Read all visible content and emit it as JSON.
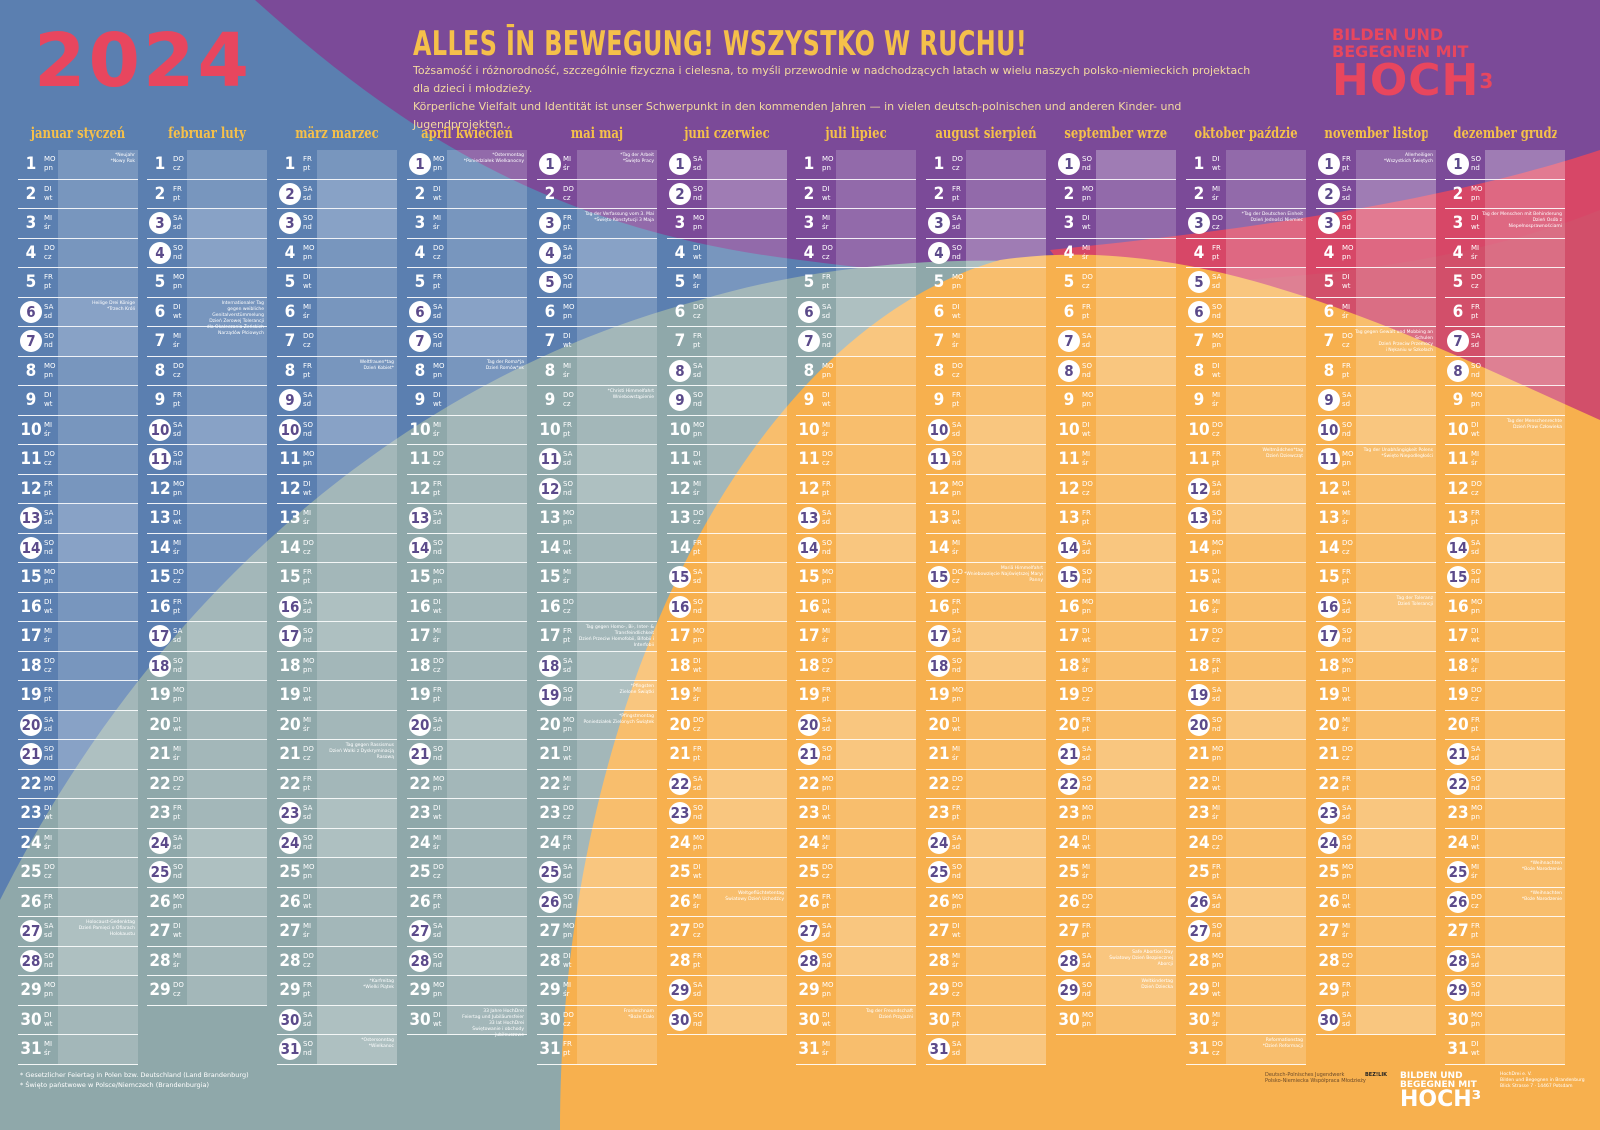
{
  "header": {
    "year": "2024",
    "headline": "ALLES ĪN BEWEGUNG! WSZYSTKO W RUCHU!",
    "intro_pl": "Tożsamość i różnorodność, szczególnie fizyczna i cielesna, to myśli przewodnie w nadchodzących latach w wielu naszych polsko-niemieckich projektach dla dzieci i młodzieży.",
    "intro_de": "Körperliche Vielfalt und Identität ist unser Schwerpunkt in den kommenden Jahren — in vielen deutsch-polnischen und anderen Kinder- und Jugendprojekten.",
    "logo_line1": "BILDEN UND",
    "logo_line2": "BEGEGNEN MIT",
    "logo_line3": "HOCH",
    "logo_sup": "3"
  },
  "weekdays": [
    [
      "MO",
      "pn"
    ],
    [
      "DI",
      "wt"
    ],
    [
      "MI",
      "śr"
    ],
    [
      "DO",
      "cz"
    ],
    [
      "FR",
      "pt"
    ],
    [
      "SA",
      "sd"
    ],
    [
      "SO",
      "nd"
    ]
  ],
  "months": [
    {
      "title": "januar styczeń",
      "days": 31,
      "start": 0,
      "holidays": [
        6,
        7,
        13,
        14,
        20,
        21,
        27,
        28
      ],
      "notes": {
        "1": "*Neujahr\n*Nowy Rok",
        "6": "Heilige Drei Könige\n*Trzech Króli",
        "27": "Holocaust-Gedenktag\nDzień Pamięci o Ofiarach Holokaustu"
      }
    },
    {
      "title": "februar luty",
      "days": 29,
      "start": 3,
      "holidays": [
        3,
        4,
        10,
        11,
        17,
        18,
        24,
        25
      ],
      "notes": {
        "6": "Internationaler Tag\ngegen weibliche Genitalverstümmelung\nDzień Zerowej Tolerancji\ndla Okaleczania Żeńskich Narządów Płciowych"
      }
    },
    {
      "title": "märz marzec",
      "days": 31,
      "start": 4,
      "holidays": [
        2,
        3,
        9,
        10,
        16,
        17,
        23,
        24,
        30,
        31
      ],
      "notes": {
        "8": "Weltfrauen*tag\nDzień Kobiet*",
        "21": "Tag gegen Rassismus\nDzień Walki z Dyskryminacją Rasową",
        "29": "*Karfreitag\n*Wielki Piątek",
        "31": "*Ostersonntag\n*Wielkanoc"
      }
    },
    {
      "title": "april kwiecień",
      "days": 30,
      "start": 0,
      "holidays": [
        1,
        6,
        7,
        13,
        14,
        20,
        21,
        27,
        28
      ],
      "notes": {
        "1": "*Ostermontag\n*Poniedziałek Wielkanocny",
        "8": "Tag der Roma*ja\nDzień Romów*ek",
        "30": "33 Jahre HochDrei\nFeiertag und Jubiläumsfeier\n33 lat HochDrei\nŚwiętowanie i obchody jubileuszowe"
      }
    },
    {
      "title": "mai maj",
      "days": 31,
      "start": 2,
      "holidays": [
        1,
        3,
        4,
        5,
        11,
        12,
        18,
        19,
        25,
        26
      ],
      "notes": {
        "1": "*Tag der Arbeit\n*Święto Pracy",
        "3": "Tag der Verfassung vom 3. Mai\n*Święto Konstytucji 3 Maja",
        "9": "*Christi Himmelfahrt\nWniebowstąpienie",
        "17": "Tag gegen Homo-, Bi-, Inter- & Transfeindlichkeit\nDzień Przeciw Homofobii, Bifobii i Interfobii",
        "19": "*Pfingsten\nZielone Świątki",
        "20": "*Pfingstmontag\nPoniedziałek Zielonych Świątek",
        "30": "Fronleichnam\n*Boże Ciało"
      }
    },
    {
      "title": "juni czerwiec",
      "days": 30,
      "start": 5,
      "holidays": [
        1,
        2,
        8,
        9,
        15,
        16,
        22,
        23,
        29,
        30
      ],
      "notes": {
        "26": "Weltgeflüchtetentag\nŚwiatowy Dzień Uchodźcy"
      }
    },
    {
      "title": "juli lipiec",
      "days": 31,
      "start": 0,
      "holidays": [
        6,
        7,
        13,
        14,
        20,
        21,
        27,
        28
      ],
      "notes": {
        "30": "Tag der Freundschaft\nDzień Przyjaźni"
      }
    },
    {
      "title": "august sierpień",
      "days": 31,
      "start": 3,
      "holidays": [
        3,
        4,
        10,
        11,
        15,
        17,
        18,
        24,
        25,
        31
      ],
      "notes": {
        "15": "Mariä Himmelfahrt\n*Wniebowzięcie Najświętszej Maryi Panny"
      }
    },
    {
      "title": "september wrzesień",
      "days": 30,
      "start": 6,
      "holidays": [
        1,
        7,
        8,
        14,
        15,
        21,
        22,
        28,
        29
      ],
      "notes": {
        "28": "Safe Abortion Day\nŚwiatowy Dzień Bezpiecznej Aborcji",
        "29": "Weltkindertag\nDzień Dziecka"
      }
    },
    {
      "title": "oktober październik",
      "days": 31,
      "start": 1,
      "holidays": [
        3,
        5,
        6,
        12,
        13,
        19,
        20,
        26,
        27
      ],
      "notes": {
        "3": "*Tag der Deutschen Einheit\nDzień Jedności Niemiec",
        "11": "Weltmädchen*tag\nDzień Dziewcząt",
        "31": "Reformationstag\n*Dzień Reformacji"
      }
    },
    {
      "title": "november listopad",
      "days": 30,
      "start": 4,
      "holidays": [
        1,
        2,
        3,
        9,
        10,
        11,
        16,
        17,
        23,
        24,
        30
      ],
      "notes": {
        "1": "Allerheiligen\n*Wszystkich Świętych",
        "7": "Tag gegen Gewalt und Mobbing an Schulen\nDzień Przeciw Przemocy\ni Nękaniu w Szkołach",
        "11": "Tag der Unabhängigkeit Polens\n*Święto Niepodległości",
        "16": "Tag der Toleranz\nDzień Tolerancji"
      }
    },
    {
      "title": "dezember grudzień",
      "days": 31,
      "start": 6,
      "holidays": [
        1,
        7,
        8,
        14,
        15,
        21,
        22,
        25,
        26,
        28,
        29
      ],
      "notes": {
        "3": "Tag der Menschen mit Behinderung\nDzień Osób z Niepełnosprawnościami",
        "10": "Tag der Menschenrechte\nDzień Praw Człowieka",
        "25": "*Weihnachten\n*Boże Narodzenie",
        "26": "*Weihnachten\n*Boże Narodzenie"
      }
    }
  ],
  "footer": {
    "line1": "*  Gesetzlicher Feiertag in Polen bzw. Deutschland (Land Brandenburg)",
    "line2": "*  Święto państwowe w Polsce/Niemczech (Brandenburgia)",
    "partner1": "Deutsch-Polnisches Jugendwerk\nPolsko-Niemiecka Współpraca Młodzieży",
    "partner2": "BEZ!LIK",
    "logo_line1": "BILDEN UND\nBEGEGNEN MIT",
    "logo_line2": "HOCH³",
    "address": "HochDrei e. V.\nBilden und Begegnen in Brandenburg\nBlick Strasse 7 · 14467 Potsdam"
  },
  "colors": {
    "blue": "#5b7fb0",
    "purple": "#7b4a98",
    "orange": "#f7b04e",
    "pink": "#e8465e",
    "teal": "#8fa8aa",
    "yellow": "#f5c04a"
  }
}
